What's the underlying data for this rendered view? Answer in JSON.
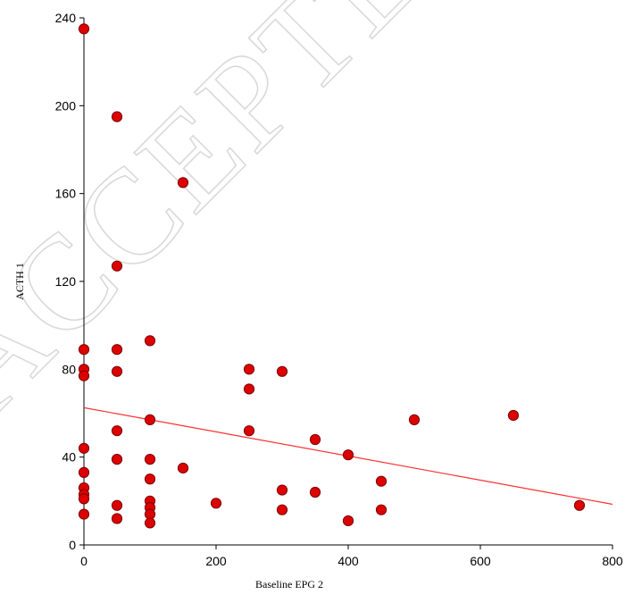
{
  "watermark": "ACCEPTED",
  "chart_data": {
    "type": "scatter",
    "title": "",
    "xlabel": "Baseline EPG 2",
    "ylabel": "ACTH 1",
    "xlim": [
      0,
      800
    ],
    "ylim": [
      0,
      240
    ],
    "x_ticks": [
      0,
      200,
      400,
      600,
      800
    ],
    "y_ticks": [
      0,
      40,
      80,
      120,
      160,
      200,
      240
    ],
    "grid": false,
    "legend": "none",
    "marker_color": "#dd0000",
    "marker_edge_color": "#7a0000",
    "line_color": "#ff3030",
    "points": [
      {
        "x": 0,
        "y": 235
      },
      {
        "x": 0,
        "y": 89
      },
      {
        "x": 0,
        "y": 80
      },
      {
        "x": 0,
        "y": 77
      },
      {
        "x": 0,
        "y": 44
      },
      {
        "x": 0,
        "y": 33
      },
      {
        "x": 0,
        "y": 26
      },
      {
        "x": 0,
        "y": 23
      },
      {
        "x": 0,
        "y": 21
      },
      {
        "x": 0,
        "y": 14
      },
      {
        "x": 50,
        "y": 195
      },
      {
        "x": 50,
        "y": 127
      },
      {
        "x": 50,
        "y": 89
      },
      {
        "x": 50,
        "y": 79
      },
      {
        "x": 50,
        "y": 52
      },
      {
        "x": 50,
        "y": 39
      },
      {
        "x": 50,
        "y": 18
      },
      {
        "x": 50,
        "y": 12
      },
      {
        "x": 100,
        "y": 93
      },
      {
        "x": 100,
        "y": 57
      },
      {
        "x": 100,
        "y": 39
      },
      {
        "x": 100,
        "y": 30
      },
      {
        "x": 100,
        "y": 20
      },
      {
        "x": 100,
        "y": 17
      },
      {
        "x": 100,
        "y": 14
      },
      {
        "x": 100,
        "y": 10
      },
      {
        "x": 150,
        "y": 165
      },
      {
        "x": 150,
        "y": 35
      },
      {
        "x": 200,
        "y": 19
      },
      {
        "x": 250,
        "y": 80
      },
      {
        "x": 250,
        "y": 71
      },
      {
        "x": 250,
        "y": 52
      },
      {
        "x": 300,
        "y": 79
      },
      {
        "x": 300,
        "y": 25
      },
      {
        "x": 300,
        "y": 16
      },
      {
        "x": 350,
        "y": 48
      },
      {
        "x": 350,
        "y": 24
      },
      {
        "x": 400,
        "y": 41
      },
      {
        "x": 400,
        "y": 11
      },
      {
        "x": 450,
        "y": 29
      },
      {
        "x": 450,
        "y": 16
      },
      {
        "x": 500,
        "y": 57
      },
      {
        "x": 650,
        "y": 59
      },
      {
        "x": 750,
        "y": 18
      }
    ],
    "trend_line": {
      "x": [
        0,
        800
      ],
      "y": [
        62.5,
        18.5
      ]
    }
  }
}
